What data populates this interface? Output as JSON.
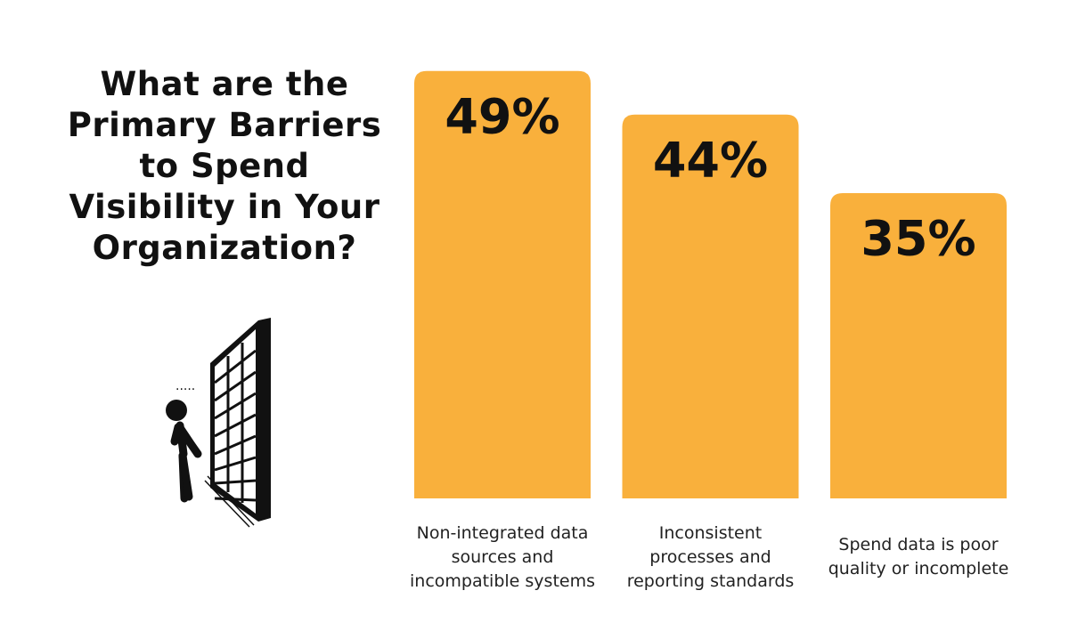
{
  "chart_data": {
    "type": "bar",
    "title": "What are the Primary Barriers to Spend Visibility in Your Organization?",
    "categories": [
      "Non-integrated data sources and incompatible systems",
      "Inconsistent processes and reporting standards",
      "Spend data is poor quality or incomplete"
    ],
    "values": [
      49,
      44,
      35
    ],
    "value_labels": [
      "49%",
      "44%",
      "35%"
    ],
    "color": "#f9b03c"
  }
}
